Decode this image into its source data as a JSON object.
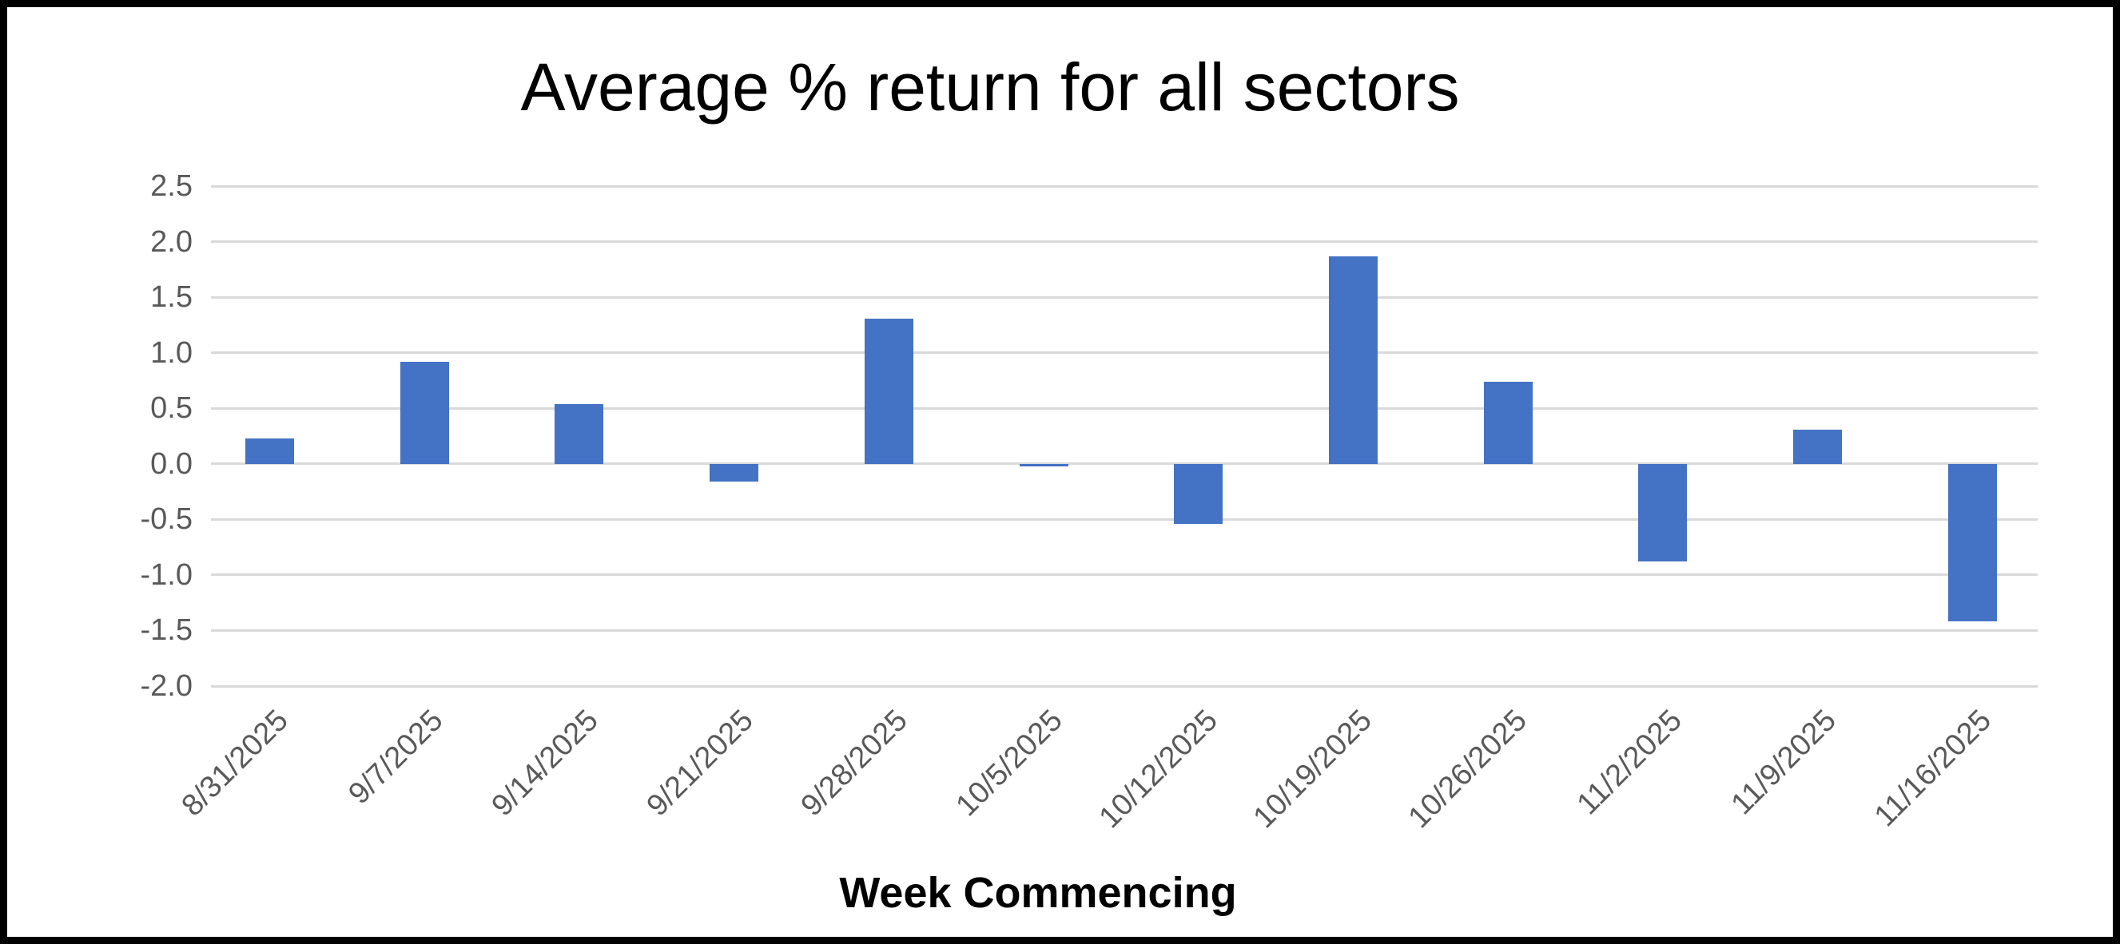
{
  "chart_data": {
    "type": "bar",
    "title": "Average % return for all sectors",
    "xlabel": "Week Commencing",
    "ylabel": "",
    "categories": [
      "8/31/2025",
      "9/7/2025",
      "9/14/2025",
      "9/21/2025",
      "9/28/2025",
      "10/5/2025",
      "10/12/2025",
      "10/19/2025",
      "10/26/2025",
      "11/2/2025",
      "11/9/2025",
      "11/16/2025"
    ],
    "values": [
      0.23,
      0.92,
      0.54,
      -0.16,
      1.31,
      -0.02,
      -0.54,
      1.87,
      0.74,
      -0.88,
      0.31,
      -1.42
    ],
    "yticks": [
      2.5,
      2.0,
      1.5,
      1.0,
      0.5,
      0.0,
      -0.5,
      -1.0,
      -1.5,
      -2.0
    ],
    "ylim": [
      -2.0,
      2.5
    ],
    "grid": true,
    "legend_position": "none",
    "bar_color": "#4472C4",
    "gridline_color": "#D9D9D9",
    "tick_label_color": "#595959",
    "title_color": "#000000",
    "frame_color": "#000000"
  }
}
